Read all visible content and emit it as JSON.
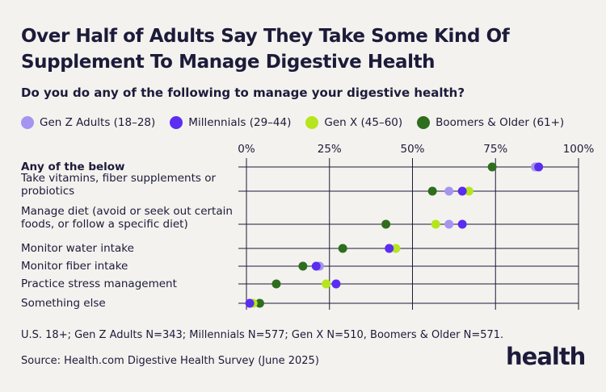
{
  "title": "Over Half of Adults Say They Take Some Kind Of Supplement To Manage Digestive Health",
  "subtitle": "Do you do any of the following to manage your digestive health?",
  "footnote": "U.S. 18+; Gen Z Adults N=343; Millennials N=577; Gen X N=510, Boomers & Older N=571.",
  "source": "Source: Health.com Digestive Health Survey (June 2025)",
  "logo_text": "health",
  "colors": {
    "background": "#f4f2ee",
    "text": "#1c1b3a",
    "gridline": "#1c1b3a"
  },
  "chart_data": {
    "type": "scatter",
    "xlim": [
      0,
      100
    ],
    "x_ticks": [
      "0%",
      "25%",
      "50%",
      "75%",
      "100%"
    ],
    "x_tick_values": [
      0,
      25,
      50,
      75,
      100
    ],
    "grid": true,
    "legend_position": "top-left",
    "categories": [
      "Any of the below",
      "Take vitamins, fiber supplements or probiotics",
      "Manage diet (avoid or seek out certain foods, or follow a specific diet)",
      "Monitor water intake",
      "Monitor fiber intake",
      "Practice stress management",
      "Something else"
    ],
    "category_lines": [
      [
        "Any of the below"
      ],
      [
        "Take vitamins, fiber supplements or",
        "probiotics"
      ],
      [
        "Manage diet (avoid or seek out certain",
        "foods, or follow a specific diet)"
      ],
      [
        "Monitor water intake"
      ],
      [
        "Monitor fiber intake"
      ],
      [
        "Practice stress management"
      ],
      [
        "Something else"
      ]
    ],
    "series": [
      {
        "name": "Gen Z Adults (18–28)",
        "color": "#a794f0",
        "values": [
          87,
          61,
          61,
          43,
          22,
          27,
          1
        ]
      },
      {
        "name": "Millennials (29–44)",
        "color": "#5a2df0",
        "values": [
          88,
          65,
          65,
          43,
          21,
          27,
          1
        ]
      },
      {
        "name": "Gen X (45–60)",
        "color": "#b5e61d",
        "values": [
          87,
          67,
          57,
          45,
          22,
          24,
          2
        ]
      },
      {
        "name": "Boomers & Older (61+)",
        "color": "#2e6e1e",
        "values": [
          74,
          56,
          42,
          29,
          17,
          9,
          4
        ]
      }
    ]
  }
}
